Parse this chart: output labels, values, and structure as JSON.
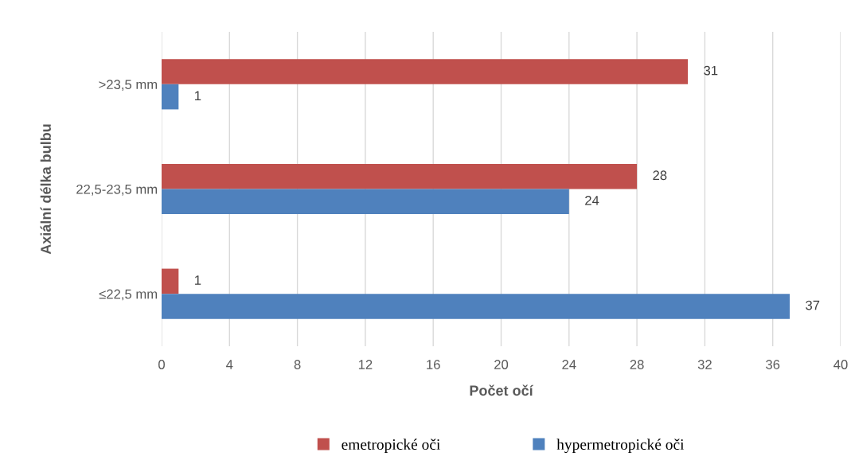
{
  "chart_data": {
    "type": "bar",
    "orientation": "horizontal",
    "xlabel": "Počet očí",
    "ylabel": "Axiální délka bulbu",
    "categories": [
      ">23,5 mm",
      "22,5-23,5 mm",
      "≤22,5 mm"
    ],
    "series": [
      {
        "name": "emetropické oči",
        "color": "#c0504d",
        "values": [
          31,
          28,
          1
        ]
      },
      {
        "name": "hypermetropické oči",
        "color": "#4f81bd",
        "values": [
          1,
          24,
          37
        ]
      }
    ],
    "xlim": [
      0,
      40
    ],
    "xticks": [
      0,
      4,
      8,
      12,
      16,
      20,
      24,
      28,
      32,
      36,
      40
    ],
    "grid": "x",
    "legend": "bottom",
    "data_labels": true
  }
}
